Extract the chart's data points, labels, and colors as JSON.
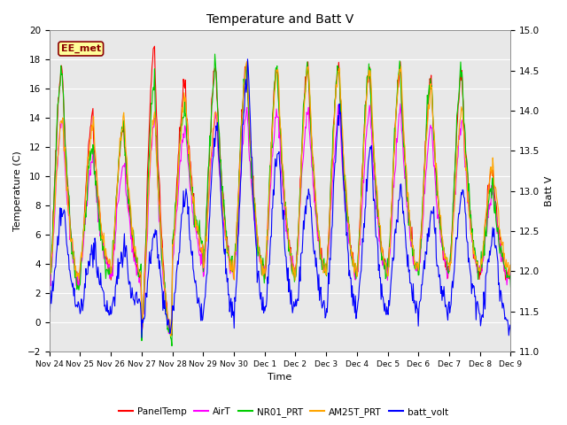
{
  "title": "Temperature and Batt V",
  "xlabel": "Time",
  "ylabel_left": "Temperature (C)",
  "ylabel_right": "Batt V",
  "ylim_left": [
    -2,
    20
  ],
  "ylim_right": [
    11.0,
    15.0
  ],
  "yticks_left": [
    -2,
    0,
    2,
    4,
    6,
    8,
    10,
    12,
    14,
    16,
    18,
    20
  ],
  "yticks_right": [
    11.0,
    11.5,
    12.0,
    12.5,
    13.0,
    13.5,
    14.0,
    14.5,
    15.0
  ],
  "xtick_labels": [
    "Nov 24",
    "Nov 25",
    "Nov 26",
    "Nov 27",
    "Nov 28",
    "Nov 29",
    "Nov 30",
    "Dec 1",
    "Dec 2",
    "Dec 3",
    "Dec 4",
    "Dec 5",
    "Dec 6",
    "Dec 7",
    "Dec 8",
    "Dec 9"
  ],
  "annotation_text": "EE_met",
  "annotation_color": "#8B0000",
  "annotation_bg": "#FFFF99",
  "colors": {
    "PanelTemp": "#FF0000",
    "AirT": "#FF00FF",
    "NR01_PRT": "#00CC00",
    "AM25T_PRT": "#FFA500",
    "batt_volt": "#0000FF"
  },
  "background_color": "#FFFFFF",
  "plot_bg_color": "#E8E8E8",
  "grid_color": "#FFFFFF",
  "num_points": 720
}
